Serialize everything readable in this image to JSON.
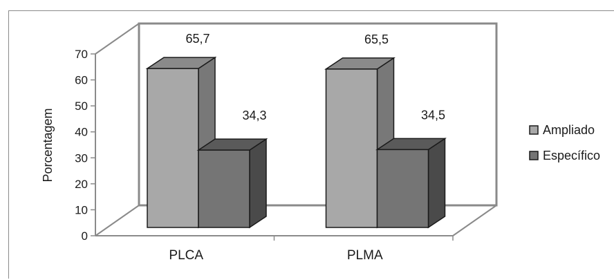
{
  "chart_data": {
    "type": "bar",
    "title": "",
    "xlabel": "",
    "ylabel": "Porcentagem",
    "ylim": [
      0,
      70
    ],
    "yticks": [
      0,
      10,
      20,
      30,
      40,
      50,
      60,
      70
    ],
    "categories": [
      "PLCA",
      "PLMA"
    ],
    "series": [
      {
        "name": "Ampliado",
        "values": [
          65.7,
          65.5
        ],
        "labels": [
          "65,7",
          "65,5"
        ]
      },
      {
        "name": "Específico",
        "values": [
          34.3,
          34.5
        ],
        "labels": [
          "34,3",
          "34,5"
        ]
      }
    ],
    "legend": "right",
    "grid": false,
    "colors": {
      "series": [
        "#a8a8a8",
        "#757575"
      ],
      "series_dark": [
        "#8a8a8a",
        "#5a5a5a"
      ],
      "series_side": [
        "#787878",
        "#4a4a4a"
      ],
      "axis": "#8a8a8a"
    }
  }
}
